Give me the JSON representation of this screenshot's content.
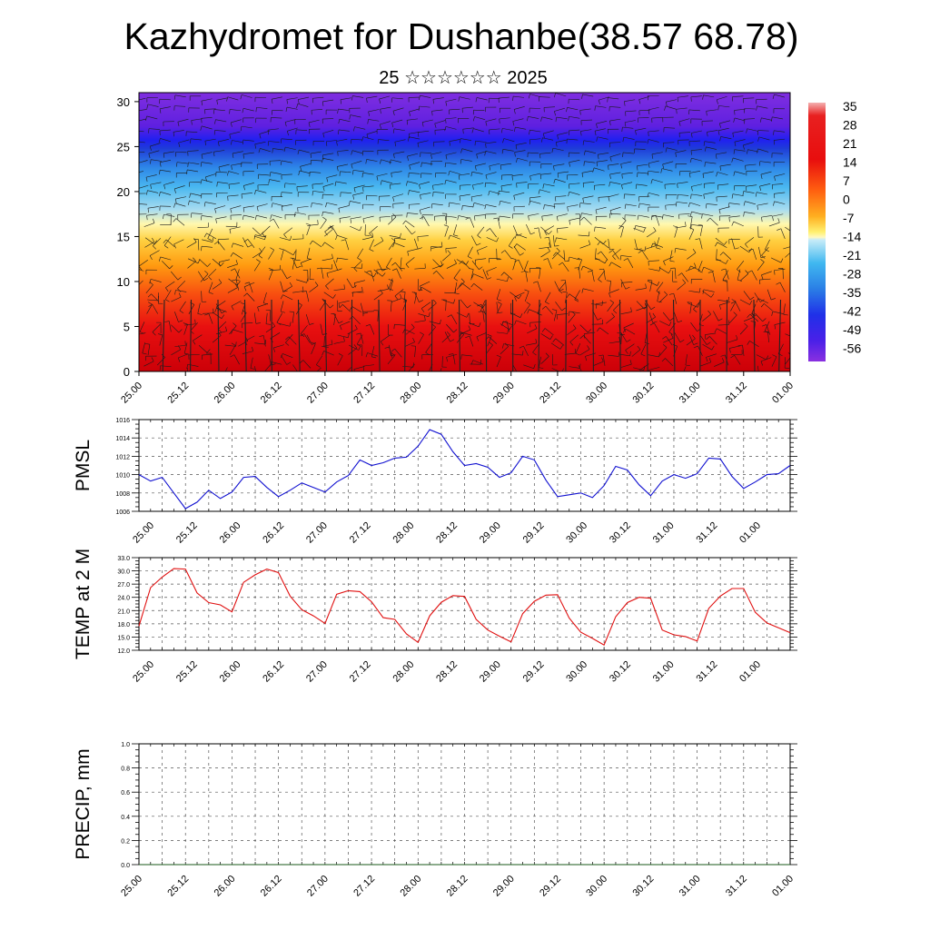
{
  "title": "Kazhydromet for Dushanbe(38.57 68.78)",
  "subtitle": "25 ☆☆☆☆☆☆ 2025",
  "time_ticks": [
    "25.00",
    "25.12",
    "26.00",
    "26.12",
    "27.00",
    "27.12",
    "28.00",
    "28.12",
    "29.00",
    "29.12",
    "30.00",
    "30.12",
    "31.00",
    "31.12",
    "01.00"
  ],
  "colors": {
    "pmsl_line": "#1010d0",
    "temp_line": "#e01010",
    "precip_line": "#1a5a1a",
    "grid": "#555555"
  },
  "chart_data": [
    {
      "type": "heatmap",
      "title": "Kazhydromet for Dushanbe(38.57 68.78)",
      "subtitle": "25 ☆☆☆☆☆☆ 2025",
      "x_ticks": [
        "25.00",
        "25.12",
        "26.00",
        "26.12",
        "27.00",
        "27.12",
        "28.00",
        "28.12",
        "29.00",
        "29.12",
        "30.00",
        "30.12",
        "31.00",
        "31.12",
        "01.00"
      ],
      "y_ticks": [
        0,
        5,
        10,
        15,
        20,
        25,
        30
      ],
      "ylim": [
        0,
        31
      ],
      "colorbar": {
        "labels": [
          "35",
          "28",
          "21",
          "14",
          "7",
          "0",
          "-7",
          "-14",
          "-21",
          "-28",
          "-35",
          "-42",
          "-49",
          "-56"
        ],
        "range": [
          -60,
          38
        ]
      },
      "overlay": "wind barbs"
    },
    {
      "type": "line",
      "ylabel": "PMSL",
      "x_ticks": [
        "25.00",
        "25.12",
        "26.00",
        "26.12",
        "27.00",
        "27.12",
        "28.00",
        "28.12",
        "29.00",
        "29.12",
        "30.00",
        "30.12",
        "31.00",
        "31.12",
        "01.00"
      ],
      "y_ticks": [
        "1006",
        "1008",
        "1010",
        "1012",
        "1014",
        "1016"
      ],
      "ylim": [
        1006,
        1016
      ],
      "xlim": [
        0,
        56
      ],
      "series": [
        {
          "x": [
            0,
            1,
            2,
            3,
            4,
            5,
            6,
            7,
            8,
            9,
            10,
            11,
            12,
            13,
            14,
            15,
            16,
            17,
            18,
            19,
            20,
            21,
            22,
            23,
            24,
            25,
            26,
            27,
            28,
            29,
            30,
            31,
            32,
            33,
            34,
            35,
            36,
            37,
            38,
            39,
            40,
            41,
            42,
            43,
            44,
            45,
            46,
            47,
            48,
            49,
            50,
            51,
            52,
            53,
            54,
            55,
            56
          ],
          "y": [
            1010.0,
            1009.3,
            1009.7,
            1008.0,
            1006.3,
            1007.0,
            1008.3,
            1007.4,
            1008.1,
            1009.7,
            1009.8,
            1008.6,
            1007.6,
            1008.3,
            1009.1,
            1008.6,
            1008.1,
            1009.2,
            1009.9,
            1011.6,
            1011.0,
            1011.3,
            1011.8,
            1011.9,
            1013.1,
            1014.9,
            1014.4,
            1012.5,
            1011.0,
            1011.2,
            1010.8,
            1009.7,
            1010.2,
            1012.0,
            1011.6,
            1009.4,
            1007.6,
            1007.8,
            1008.0,
            1007.5,
            1008.8,
            1010.9,
            1010.5,
            1008.9,
            1007.7,
            1009.3,
            1010.0,
            1009.6,
            1010.1,
            1011.8,
            1011.7,
            1009.8,
            1008.5,
            1009.2,
            1010.0,
            1010.1,
            1011.0
          ]
        }
      ]
    },
    {
      "type": "line",
      "ylabel": "TEMP at 2 M",
      "x_ticks": [
        "25.00",
        "25.12",
        "26.00",
        "26.12",
        "27.00",
        "27.12",
        "28.00",
        "28.12",
        "29.00",
        "29.12",
        "30.00",
        "30.12",
        "31.00",
        "31.12",
        "01.00"
      ],
      "y_ticks": [
        "12.0",
        "15.0",
        "18.0",
        "21.0",
        "24.0",
        "27.0",
        "30.0",
        "33.0"
      ],
      "ylim": [
        12,
        33
      ],
      "xlim": [
        0,
        56
      ],
      "series": [
        {
          "x": [
            0,
            1,
            2,
            3,
            4,
            5,
            6,
            7,
            8,
            9,
            10,
            11,
            12,
            13,
            14,
            15,
            16,
            17,
            18,
            19,
            20,
            21,
            22,
            23,
            24,
            25,
            26,
            27,
            28,
            29,
            30,
            31,
            32,
            33,
            34,
            35,
            36,
            37,
            38,
            39,
            40,
            41,
            42,
            43,
            44,
            45,
            46,
            47,
            48,
            49,
            50,
            51,
            52,
            53,
            54,
            55,
            56
          ],
          "y": [
            17.5,
            26.2,
            28.6,
            30.5,
            30.4,
            25.0,
            22.8,
            22.3,
            20.7,
            27.4,
            29.1,
            30.4,
            29.6,
            24.3,
            21.2,
            19.8,
            18.1,
            24.7,
            25.5,
            25.3,
            23.0,
            19.4,
            19.0,
            15.7,
            13.8,
            19.8,
            22.9,
            24.4,
            24.2,
            19.0,
            16.6,
            15.2,
            13.9,
            20.3,
            23.1,
            24.5,
            24.6,
            19.3,
            16.1,
            14.7,
            13.2,
            19.6,
            22.8,
            24.0,
            23.8,
            16.6,
            15.5,
            15.1,
            14.1,
            21.5,
            24.3,
            26.0,
            26.0,
            20.6,
            18.2,
            17.1,
            16.0
          ]
        }
      ]
    },
    {
      "type": "line",
      "ylabel": "PRECIP, mm",
      "x_ticks": [
        "25.00",
        "25.12",
        "26.00",
        "26.12",
        "27.00",
        "27.12",
        "28.00",
        "28.12",
        "29.00",
        "29.12",
        "30.00",
        "30.12",
        "31.00",
        "31.12",
        "01.00"
      ],
      "y_ticks": [
        "0.0",
        "0.2",
        "0.4",
        "0.6",
        "0.8",
        "1.0"
      ],
      "ylim": [
        0,
        1
      ],
      "xlim": [
        0,
        56
      ],
      "series": [
        {
          "x": [
            0,
            56
          ],
          "y": [
            0,
            0
          ]
        }
      ]
    }
  ]
}
